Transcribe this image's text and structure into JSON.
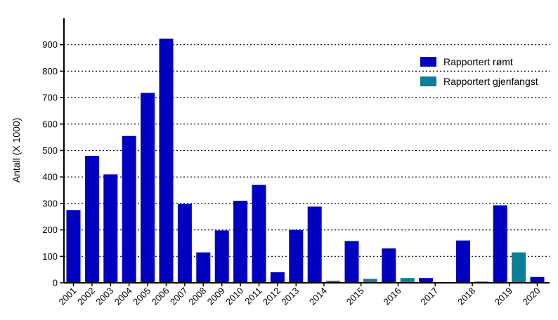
{
  "chart_data": {
    "type": "bar",
    "title": "",
    "xlabel": "",
    "ylabel": "Antall (X 1000)",
    "ylim": [
      0,
      1000
    ],
    "yticks": [
      0,
      100,
      200,
      300,
      400,
      500,
      600,
      700,
      800,
      900
    ],
    "grid": "horizontal dotted",
    "legend_position": "top-right",
    "colors": {
      "rapportert_romt": "#0000c0",
      "rapportert_gjenfangst": "#0a7f95"
    },
    "series": [
      {
        "name": "Rapportert rømt",
        "color": "#0000c0"
      },
      {
        "name": "Rapportert gjenfangst",
        "color": "#0a7f95"
      }
    ],
    "categories": [
      "2001",
      "2002",
      "2003",
      "2004",
      "2005",
      "2006",
      "2007",
      "2008",
      "2009",
      "2010",
      "2011",
      "2012",
      "2013",
      "2014",
      "2015",
      "2016",
      "2017",
      "2018",
      "2019",
      "2020"
    ],
    "bars": [
      {
        "x": "2001",
        "series": 0,
        "value": 275
      },
      {
        "x": "2002",
        "series": 0,
        "value": 480
      },
      {
        "x": "2003",
        "series": 0,
        "value": 410
      },
      {
        "x": "2004",
        "series": 0,
        "value": 555
      },
      {
        "x": "2005",
        "series": 0,
        "value": 718
      },
      {
        "x": "2006",
        "series": 0,
        "value": 923
      },
      {
        "x": "2007",
        "series": 0,
        "value": 298
      },
      {
        "x": "2008",
        "series": 0,
        "value": 115
      },
      {
        "x": "2009",
        "series": 0,
        "value": 198
      },
      {
        "x": "2010",
        "series": 0,
        "value": 310
      },
      {
        "x": "2011",
        "series": 0,
        "value": 370
      },
      {
        "x": "2012",
        "series": 0,
        "value": 40
      },
      {
        "x": "2013",
        "series": 0,
        "value": 200
      },
      {
        "x": "2014",
        "series": 0,
        "value": 288
      },
      {
        "x": "2014",
        "series": 1,
        "value": 8
      },
      {
        "x": "2015",
        "series": 0,
        "value": 158
      },
      {
        "x": "2015",
        "series": 1,
        "value": 15
      },
      {
        "x": "2016",
        "series": 0,
        "value": 130
      },
      {
        "x": "2016",
        "series": 1,
        "value": 18
      },
      {
        "x": "2017",
        "series": 0,
        "value": 18
      },
      {
        "x": "2017",
        "series": 1,
        "value": 0
      },
      {
        "x": "2018",
        "series": 0,
        "value": 160
      },
      {
        "x": "2018",
        "series": 1,
        "value": 5
      },
      {
        "x": "2019",
        "series": 0,
        "value": 293
      },
      {
        "x": "2019",
        "series": 1,
        "value": 115
      },
      {
        "x": "2020",
        "series": 0,
        "value": 22
      }
    ]
  }
}
